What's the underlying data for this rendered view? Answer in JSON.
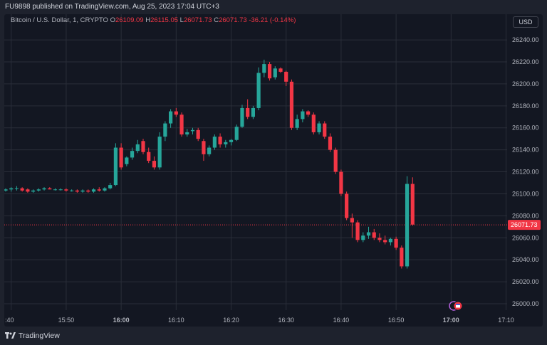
{
  "header": {
    "publish_line": "FU9898 published on TradingView.com, Aug 25, 2023 17:04 UTC+3"
  },
  "legend": {
    "symbol": "Bitcoin / U.S. Dollar, 1, CRYPTO",
    "o_label": "O",
    "o_value": "26109.09",
    "h_label": "H",
    "h_value": "26115.05",
    "l_label": "L",
    "l_value": "26071.73",
    "c_label": "C",
    "c_value": "26071.73",
    "change": "-36.21 (-0.14%)"
  },
  "currency_button": "USD",
  "footer": {
    "brand": "TradingView"
  },
  "colors": {
    "up": "#26a69a",
    "down": "#f23645",
    "background": "#131722",
    "grid": "#2a2e39"
  },
  "chart_data": {
    "type": "candlestick",
    "interval_minutes": 1,
    "ylim": [
      25990,
      26255
    ],
    "yticks": [
      26000,
      26020,
      26040,
      26060,
      26080,
      26100,
      26120,
      26140,
      26160,
      26180,
      26200,
      26220,
      26240
    ],
    "x_tick_labels": [
      ":40",
      "15:50",
      "16:00",
      "16:10",
      "16:20",
      "16:30",
      "16:40",
      "16:50",
      "17:00",
      "17:10"
    ],
    "x_tick_bold": [
      false,
      false,
      true,
      false,
      false,
      false,
      false,
      false,
      true,
      false
    ],
    "last_price_label": "26071.73",
    "last_price": 26071.73,
    "candles": [
      {
        "t": "15:39",
        "o": 26103,
        "h": 26105,
        "l": 26102,
        "c": 26104
      },
      {
        "t": "15:40",
        "o": 26104,
        "h": 26106,
        "l": 26102,
        "c": 26105
      },
      {
        "t": "15:41",
        "o": 26105,
        "h": 26107,
        "l": 26103,
        "c": 26105
      },
      {
        "t": "15:42",
        "o": 26105,
        "h": 26106,
        "l": 26102,
        "c": 26103
      },
      {
        "t": "15:43",
        "o": 26104,
        "h": 26105,
        "l": 26101,
        "c": 26102
      },
      {
        "t": "15:44",
        "o": 26102,
        "h": 26104,
        "l": 26101,
        "c": 26103
      },
      {
        "t": "15:45",
        "o": 26103,
        "h": 26105,
        "l": 26102,
        "c": 26104
      },
      {
        "t": "15:46",
        "o": 26104,
        "h": 26106,
        "l": 26103,
        "c": 26105
      },
      {
        "t": "15:47",
        "o": 26105,
        "h": 26106,
        "l": 26104,
        "c": 26104
      },
      {
        "t": "15:48",
        "o": 26104,
        "h": 26105,
        "l": 26103,
        "c": 26104
      },
      {
        "t": "15:49",
        "o": 26104,
        "h": 26105,
        "l": 26103,
        "c": 26104
      },
      {
        "t": "15:50",
        "o": 26104,
        "h": 26105,
        "l": 26102,
        "c": 26103
      },
      {
        "t": "15:51",
        "o": 26103,
        "h": 26104,
        "l": 26102,
        "c": 26103
      },
      {
        "t": "15:52",
        "o": 26103,
        "h": 26104,
        "l": 26101,
        "c": 26102
      },
      {
        "t": "15:53",
        "o": 26102,
        "h": 26104,
        "l": 26101,
        "c": 26103
      },
      {
        "t": "15:54",
        "o": 26103,
        "h": 26104,
        "l": 26101,
        "c": 26102
      },
      {
        "t": "15:55",
        "o": 26102,
        "h": 26105,
        "l": 26101,
        "c": 26104
      },
      {
        "t": "15:56",
        "o": 26104,
        "h": 26106,
        "l": 26102,
        "c": 26103
      },
      {
        "t": "15:57",
        "o": 26103,
        "h": 26106,
        "l": 26102,
        "c": 26105
      },
      {
        "t": "15:58",
        "o": 26105,
        "h": 26110,
        "l": 26104,
        "c": 26108
      },
      {
        "t": "15:59",
        "o": 26108,
        "h": 26146,
        "l": 26107,
        "c": 26142
      },
      {
        "t": "16:00",
        "o": 26142,
        "h": 26146,
        "l": 26122,
        "c": 26124
      },
      {
        "t": "16:01",
        "o": 26127,
        "h": 26134,
        "l": 26125,
        "c": 26133
      },
      {
        "t": "16:02",
        "o": 26133,
        "h": 26142,
        "l": 26131,
        "c": 26139
      },
      {
        "t": "16:03",
        "o": 26139,
        "h": 26149,
        "l": 26137,
        "c": 26145
      },
      {
        "t": "16:04",
        "o": 26148,
        "h": 26150,
        "l": 26136,
        "c": 26138
      },
      {
        "t": "16:05",
        "o": 26138,
        "h": 26142,
        "l": 26128,
        "c": 26130
      },
      {
        "t": "16:06",
        "o": 26130,
        "h": 26134,
        "l": 26122,
        "c": 26124
      },
      {
        "t": "16:07",
        "o": 26124,
        "h": 26156,
        "l": 26122,
        "c": 26152
      },
      {
        "t": "16:08",
        "o": 26152,
        "h": 26166,
        "l": 26148,
        "c": 26164
      },
      {
        "t": "16:09",
        "o": 26164,
        "h": 26177,
        "l": 26160,
        "c": 26175
      },
      {
        "t": "16:10",
        "o": 26175,
        "h": 26178,
        "l": 26170,
        "c": 26172
      },
      {
        "t": "16:11",
        "o": 26172,
        "h": 26174,
        "l": 26152,
        "c": 26154
      },
      {
        "t": "16:12",
        "o": 26154,
        "h": 26159,
        "l": 26152,
        "c": 26156
      },
      {
        "t": "16:13",
        "o": 26157,
        "h": 26160,
        "l": 26154,
        "c": 26158
      },
      {
        "t": "16:14",
        "o": 26158,
        "h": 26160,
        "l": 26148,
        "c": 26150
      },
      {
        "t": "16:15",
        "o": 26148,
        "h": 26150,
        "l": 26130,
        "c": 26136
      },
      {
        "t": "16:16",
        "o": 26136,
        "h": 26144,
        "l": 26134,
        "c": 26142
      },
      {
        "t": "16:17",
        "o": 26142,
        "h": 26154,
        "l": 26140,
        "c": 26152
      },
      {
        "t": "16:18",
        "o": 26152,
        "h": 26155,
        "l": 26142,
        "c": 26145
      },
      {
        "t": "16:19",
        "o": 26145,
        "h": 26149,
        "l": 26142,
        "c": 26147
      },
      {
        "t": "16:20",
        "o": 26147,
        "h": 26150,
        "l": 26144,
        "c": 26149
      },
      {
        "t": "16:21",
        "o": 26149,
        "h": 26163,
        "l": 26148,
        "c": 26161
      },
      {
        "t": "16:22",
        "o": 26161,
        "h": 26181,
        "l": 26160,
        "c": 26178
      },
      {
        "t": "16:23",
        "o": 26178,
        "h": 26186,
        "l": 26168,
        "c": 26170
      },
      {
        "t": "16:24",
        "o": 26170,
        "h": 26180,
        "l": 26168,
        "c": 26178
      },
      {
        "t": "16:25",
        "o": 26178,
        "h": 26215,
        "l": 26176,
        "c": 26210
      },
      {
        "t": "16:26",
        "o": 26210,
        "h": 26222,
        "l": 26206,
        "c": 26218
      },
      {
        "t": "16:27",
        "o": 26218,
        "h": 26220,
        "l": 26203,
        "c": 26205
      },
      {
        "t": "16:28",
        "o": 26206,
        "h": 26216,
        "l": 26204,
        "c": 26214
      },
      {
        "t": "16:29",
        "o": 26214,
        "h": 26215,
        "l": 26210,
        "c": 26211
      },
      {
        "t": "16:30",
        "o": 26211,
        "h": 26212,
        "l": 26198,
        "c": 26202
      },
      {
        "t": "16:31",
        "o": 26202,
        "h": 26204,
        "l": 26158,
        "c": 26160
      },
      {
        "t": "16:32",
        "o": 26160,
        "h": 26172,
        "l": 26158,
        "c": 26168
      },
      {
        "t": "16:33",
        "o": 26168,
        "h": 26177,
        "l": 26165,
        "c": 26175
      },
      {
        "t": "16:34",
        "o": 26175,
        "h": 26176,
        "l": 26170,
        "c": 26172
      },
      {
        "t": "16:35",
        "o": 26172,
        "h": 26174,
        "l": 26154,
        "c": 26156
      },
      {
        "t": "16:36",
        "o": 26156,
        "h": 26166,
        "l": 26154,
        "c": 26164
      },
      {
        "t": "16:37",
        "o": 26164,
        "h": 26166,
        "l": 26150,
        "c": 26152
      },
      {
        "t": "16:38",
        "o": 26152,
        "h": 26155,
        "l": 26138,
        "c": 26140
      },
      {
        "t": "16:39",
        "o": 26140,
        "h": 26142,
        "l": 26118,
        "c": 26120
      },
      {
        "t": "16:40",
        "o": 26120,
        "h": 26122,
        "l": 26098,
        "c": 26100
      },
      {
        "t": "16:41",
        "o": 26100,
        "h": 26102,
        "l": 26076,
        "c": 26078
      },
      {
        "t": "16:42",
        "o": 26078,
        "h": 26082,
        "l": 26060,
        "c": 26074
      },
      {
        "t": "16:43",
        "o": 26074,
        "h": 26076,
        "l": 26056,
        "c": 26058
      },
      {
        "t": "16:44",
        "o": 26058,
        "h": 26065,
        "l": 26056,
        "c": 26062
      },
      {
        "t": "16:45",
        "o": 26062,
        "h": 26070,
        "l": 26059,
        "c": 26065
      },
      {
        "t": "16:46",
        "o": 26065,
        "h": 26068,
        "l": 26058,
        "c": 26060
      },
      {
        "t": "16:47",
        "o": 26060,
        "h": 26064,
        "l": 26056,
        "c": 26058
      },
      {
        "t": "16:48",
        "o": 26058,
        "h": 26062,
        "l": 26054,
        "c": 26056
      },
      {
        "t": "16:49",
        "o": 26056,
        "h": 26060,
        "l": 26053,
        "c": 26059
      },
      {
        "t": "16:50",
        "o": 26059,
        "h": 26061,
        "l": 26049,
        "c": 26051
      },
      {
        "t": "16:51",
        "o": 26051,
        "h": 26053,
        "l": 26032,
        "c": 26034
      },
      {
        "t": "16:52",
        "o": 26034,
        "h": 26116,
        "l": 26032,
        "c": 26109
      },
      {
        "t": "16:53",
        "o": 26109,
        "h": 26115,
        "l": 26071,
        "c": 26072
      }
    ]
  }
}
